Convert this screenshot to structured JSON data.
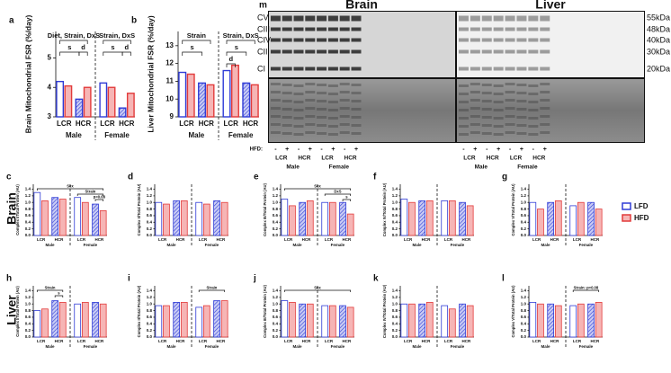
{
  "legend": [
    {
      "name": "LFD",
      "color": "#2f3bd6"
    },
    {
      "name": "HFD",
      "color": "#e23b3b"
    }
  ],
  "row_labels": [
    "Brain",
    "Liver"
  ],
  "blot": {
    "panel": "m",
    "tissues": [
      "Brain",
      "Liver"
    ],
    "bands": [
      "CV",
      "CIII",
      "CIV",
      "CII",
      "CI"
    ],
    "sizes": [
      "55kDa",
      "48kDa",
      "40kDa",
      "30kDa",
      "20kDa"
    ],
    "hfd_label": "HFD:",
    "hfd": [
      "-",
      "+",
      "-",
      "+",
      "-",
      "+",
      "-",
      "+",
      "-",
      "+",
      "-",
      "+",
      "-",
      "+",
      "-",
      "+"
    ],
    "strains": [
      "LCR",
      "HCR",
      "LCR",
      "HCR",
      "LCR",
      "HCR",
      "LCR",
      "HCR"
    ],
    "sexes": [
      "Male",
      "Female",
      "Male",
      "Female"
    ]
  },
  "chart_data": [
    {
      "type": "bar",
      "panel": "a",
      "ylabel": "Brain Mitochondrial FSR (%/day)",
      "categories": [
        "LCR",
        "HCR",
        "LCR",
        "HCR"
      ],
      "groups": [
        "Male",
        "Female"
      ],
      "series": [
        {
          "values": [
            4.2,
            3.6,
            4.15,
            3.3
          ]
        },
        {
          "values": [
            4.05,
            4.0,
            4.0,
            3.8
          ]
        }
      ],
      "ylim": [
        3,
        5.9
      ],
      "yticks": [
        3,
        4,
        5
      ],
      "annotations": [
        {
          "text": "Diet, Strain, DxS",
          "span": [
            0,
            3
          ]
        },
        {
          "text": "s",
          "span": [
            0,
            2
          ]
        },
        {
          "text": "d",
          "span": [
            2,
            3
          ]
        },
        {
          "text": "Strain, DxS",
          "span": [
            4,
            7
          ]
        },
        {
          "text": "s",
          "span": [
            4,
            6
          ]
        },
        {
          "text": "d",
          "span": [
            6,
            7
          ]
        }
      ]
    },
    {
      "type": "bar",
      "panel": "b",
      "ylabel": "Liver Mitochondrial FSR (%/day)",
      "categories": [
        "LCR",
        "HCR",
        "LCR",
        "HCR"
      ],
      "groups": [
        "Male",
        "Female"
      ],
      "series": [
        {
          "values": [
            11.5,
            10.9,
            11.6,
            10.9
          ]
        },
        {
          "values": [
            11.4,
            10.8,
            11.9,
            10.8
          ]
        }
      ],
      "ylim": [
        9,
        13.8
      ],
      "yticks": [
        9,
        10,
        11,
        12,
        13
      ],
      "annotations": [
        {
          "text": "Strain",
          "span": [
            0,
            3
          ]
        },
        {
          "text": "s",
          "span": [
            0,
            2
          ]
        },
        {
          "text": "Strain, DxS",
          "span": [
            4,
            7
          ]
        },
        {
          "text": "s",
          "span": [
            4,
            6
          ]
        },
        {
          "text": "d",
          "span": [
            4,
            5
          ]
        }
      ]
    },
    {
      "type": "bar",
      "panel": "c",
      "ylabel": "Complex I/Total Protein (AU)",
      "categories": [
        "LCR",
        "HCR",
        "LCR",
        "HCR"
      ],
      "groups": [
        "Male",
        "Female"
      ],
      "series": [
        {
          "values": [
            1.3,
            1.15,
            1.15,
            0.95
          ]
        },
        {
          "values": [
            1.05,
            1.1,
            1.0,
            0.75
          ]
        }
      ],
      "ylim": [
        0,
        1.55
      ],
      "yticks": [
        {
          "value": 0,
          "label": "0.0"
        },
        {
          "value": 0.2,
          "label": "0.2"
        },
        {
          "value": 0.4,
          "label": "0.4"
        },
        {
          "value": 0.6,
          "label": "0.6"
        },
        {
          "value": 0.8,
          "label": "0.8"
        },
        {
          "value": 1.0,
          "label": "1.0"
        },
        {
          "value": 1.2,
          "label": "1.2"
        },
        {
          "value": 1.4,
          "label": "1.4"
        }
      ],
      "annotations": [
        {
          "text": "Sex",
          "span": [
            0,
            7
          ]
        },
        {
          "text": "Strain",
          "span": [
            4,
            7
          ]
        },
        {
          "text": "p=0.08",
          "span": [
            6,
            7
          ]
        }
      ]
    },
    {
      "type": "bar",
      "panel": "d",
      "ylabel": "Complex II/Total Protein (AU)",
      "categories": [
        "LCR",
        "HCR",
        "LCR",
        "HCR"
      ],
      "groups": [
        "Male",
        "Female"
      ],
      "series": [
        {
          "values": [
            1.0,
            1.05,
            1.0,
            1.05
          ]
        },
        {
          "values": [
            0.95,
            1.05,
            0.95,
            1.0
          ]
        }
      ],
      "ylim": [
        0,
        1.55
      ],
      "yticks": [
        {
          "value": 0,
          "label": "0.0"
        },
        {
          "value": 0.2,
          "label": "0.2"
        },
        {
          "value": 0.4,
          "label": "0.4"
        },
        {
          "value": 0.6,
          "label": "0.6"
        },
        {
          "value": 0.8,
          "label": "0.8"
        },
        {
          "value": 1.0,
          "label": "1.0"
        },
        {
          "value": 1.2,
          "label": "1.2"
        },
        {
          "value": 1.4,
          "label": "1.4"
        }
      ],
      "annotations": []
    },
    {
      "type": "bar",
      "panel": "e",
      "ylabel": "Complex III/Total Protein (AU)",
      "categories": [
        "LCR",
        "HCR",
        "LCR",
        "HCR"
      ],
      "groups": [
        "Male",
        "Female"
      ],
      "series": [
        {
          "values": [
            1.1,
            1.0,
            1.0,
            1.0
          ]
        },
        {
          "values": [
            0.9,
            1.05,
            1.0,
            0.65
          ]
        }
      ],
      "ylim": [
        0,
        1.55
      ],
      "yticks": [
        {
          "value": 0,
          "label": "0.0"
        },
        {
          "value": 0.2,
          "label": "0.2"
        },
        {
          "value": 0.4,
          "label": "0.4"
        },
        {
          "value": 0.6,
          "label": "0.6"
        },
        {
          "value": 0.8,
          "label": "0.8"
        },
        {
          "value": 1.0,
          "label": "1.0"
        },
        {
          "value": 1.2,
          "label": "1.2"
        },
        {
          "value": 1.4,
          "label": "1.4"
        }
      ],
      "annotations": [
        {
          "text": "Sex",
          "span": [
            0,
            7
          ]
        },
        {
          "text": "DxS",
          "span": [
            4,
            7
          ]
        },
        {
          "text": "s",
          "span": [
            6,
            7
          ]
        }
      ]
    },
    {
      "type": "bar",
      "panel": "f",
      "ylabel": "Complex IV/Total Protein (AU)",
      "categories": [
        "LCR",
        "HCR",
        "LCR",
        "HCR"
      ],
      "groups": [
        "Male",
        "Female"
      ],
      "series": [
        {
          "values": [
            1.1,
            1.05,
            1.05,
            1.0
          ]
        },
        {
          "values": [
            1.0,
            1.05,
            1.05,
            0.9
          ]
        }
      ],
      "ylim": [
        0,
        1.55
      ],
      "yticks": [
        {
          "value": 0,
          "label": "0.0"
        },
        {
          "value": 0.2,
          "label": "0.2"
        },
        {
          "value": 0.4,
          "label": "0.4"
        },
        {
          "value": 0.6,
          "label": "0.6"
        },
        {
          "value": 0.8,
          "label": "0.8"
        },
        {
          "value": 1.0,
          "label": "1.0"
        },
        {
          "value": 1.2,
          "label": "1.2"
        },
        {
          "value": 1.4,
          "label": "1.4"
        }
      ],
      "annotations": []
    },
    {
      "type": "bar",
      "panel": "g",
      "ylabel": "Complex V/Total Protein (AU)",
      "categories": [
        "LCR",
        "HCR",
        "LCR",
        "HCR"
      ],
      "groups": [
        "Male",
        "Female"
      ],
      "series": [
        {
          "values": [
            1.0,
            1.0,
            0.9,
            1.0
          ]
        },
        {
          "values": [
            0.8,
            1.05,
            1.0,
            0.8
          ]
        }
      ],
      "ylim": [
        0,
        1.55
      ],
      "yticks": [
        {
          "value": 0,
          "label": "0.0"
        },
        {
          "value": 0.2,
          "label": "0.2"
        },
        {
          "value": 0.4,
          "label": "0.4"
        },
        {
          "value": 0.6,
          "label": "0.6"
        },
        {
          "value": 0.8,
          "label": "0.8"
        },
        {
          "value": 1.0,
          "label": "1.0"
        },
        {
          "value": 1.2,
          "label": "1.2"
        },
        {
          "value": 1.4,
          "label": "1.4"
        }
      ],
      "annotations": []
    },
    {
      "type": "bar",
      "panel": "h",
      "ylabel": "Complex I/Total Protein (AU)",
      "categories": [
        "LCR",
        "HCR",
        "LCR",
        "HCR"
      ],
      "groups": [
        "Male",
        "Female"
      ],
      "series": [
        {
          "values": [
            0.8,
            1.1,
            1.0,
            1.05
          ]
        },
        {
          "values": [
            0.85,
            1.05,
            1.05,
            1.0
          ]
        }
      ],
      "ylim": [
        0,
        1.55
      ],
      "yticks": [
        {
          "value": 0,
          "label": "0.0"
        },
        {
          "value": 0.2,
          "label": "0.2"
        },
        {
          "value": 0.4,
          "label": "0.4"
        },
        {
          "value": 0.6,
          "label": "0.6"
        },
        {
          "value": 0.8,
          "label": "0.8"
        },
        {
          "value": 1.0,
          "label": "1.0"
        },
        {
          "value": 1.2,
          "label": "1.2"
        },
        {
          "value": 1.4,
          "label": "1.4"
        }
      ],
      "annotations": [
        {
          "text": "Strain",
          "span": [
            0,
            3
          ]
        },
        {
          "text": "s",
          "span": [
            2,
            3
          ]
        }
      ]
    },
    {
      "type": "bar",
      "panel": "i",
      "ylabel": "Complex II/Total Protein (AU)",
      "categories": [
        "LCR",
        "HCR",
        "LCR",
        "HCR"
      ],
      "groups": [
        "Male",
        "Female"
      ],
      "series": [
        {
          "values": [
            0.95,
            1.05,
            0.9,
            1.1
          ]
        },
        {
          "values": [
            0.95,
            1.05,
            0.95,
            1.1
          ]
        }
      ],
      "ylim": [
        0,
        1.55
      ],
      "yticks": [
        {
          "value": 0,
          "label": "0.0"
        },
        {
          "value": 0.2,
          "label": "0.2"
        },
        {
          "value": 0.4,
          "label": "0.4"
        },
        {
          "value": 0.6,
          "label": "0.6"
        },
        {
          "value": 0.8,
          "label": "0.8"
        },
        {
          "value": 1.0,
          "label": "1.0"
        },
        {
          "value": 1.2,
          "label": "1.2"
        },
        {
          "value": 1.4,
          "label": "1.4"
        }
      ],
      "annotations": [
        {
          "text": "Strain",
          "span": [
            4,
            7
          ]
        }
      ]
    },
    {
      "type": "bar",
      "panel": "j",
      "ylabel": "Complex III/Total Protein (AU)",
      "categories": [
        "LCR",
        "HCR",
        "LCR",
        "HCR"
      ],
      "groups": [
        "Male",
        "Female"
      ],
      "series": [
        {
          "values": [
            1.1,
            1.0,
            0.95,
            0.95
          ]
        },
        {
          "values": [
            1.05,
            1.0,
            0.95,
            0.9
          ]
        }
      ],
      "ylim": [
        0,
        1.55
      ],
      "yticks": [
        {
          "value": 0,
          "label": "0.0"
        },
        {
          "value": 0.2,
          "label": "0.2"
        },
        {
          "value": 0.4,
          "label": "0.4"
        },
        {
          "value": 0.6,
          "label": "0.6"
        },
        {
          "value": 0.8,
          "label": "0.8"
        },
        {
          "value": 1.0,
          "label": "1.0"
        },
        {
          "value": 1.2,
          "label": "1.2"
        },
        {
          "value": 1.4,
          "label": "1.4"
        }
      ],
      "annotations": [
        {
          "text": "Sex",
          "span": [
            0,
            7
          ]
        }
      ]
    },
    {
      "type": "bar",
      "panel": "k",
      "ylabel": "Complex IV/Total Protein (AU)",
      "categories": [
        "LCR",
        "HCR",
        "LCR",
        "HCR"
      ],
      "groups": [
        "Male",
        "Female"
      ],
      "series": [
        {
          "values": [
            1.0,
            1.0,
            0.95,
            1.0
          ]
        },
        {
          "values": [
            1.0,
            1.05,
            0.85,
            0.95
          ]
        }
      ],
      "ylim": [
        0,
        1.55
      ],
      "yticks": [
        {
          "value": 0,
          "label": "0.0"
        },
        {
          "value": 0.2,
          "label": "0.2"
        },
        {
          "value": 0.4,
          "label": "0.4"
        },
        {
          "value": 0.6,
          "label": "0.6"
        },
        {
          "value": 0.8,
          "label": "0.8"
        },
        {
          "value": 1.0,
          "label": "1.0"
        },
        {
          "value": 1.2,
          "label": "1.2"
        },
        {
          "value": 1.4,
          "label": "1.4"
        }
      ],
      "annotations": []
    },
    {
      "type": "bar",
      "panel": "l",
      "ylabel": "Complex V/Total Protein (AU)",
      "categories": [
        "LCR",
        "HCR",
        "LCR",
        "HCR"
      ],
      "groups": [
        "Male",
        "Female"
      ],
      "series": [
        {
          "values": [
            1.05,
            1.0,
            0.95,
            1.0
          ]
        },
        {
          "values": [
            1.0,
            0.95,
            1.0,
            1.05
          ]
        }
      ],
      "ylim": [
        0,
        1.55
      ],
      "yticks": [
        {
          "value": 0,
          "label": "0.0"
        },
        {
          "value": 0.2,
          "label": "0.2"
        },
        {
          "value": 0.4,
          "label": "0.4"
        },
        {
          "value": 0.6,
          "label": "0.6"
        },
        {
          "value": 0.8,
          "label": "0.8"
        },
        {
          "value": 1.0,
          "label": "1.0"
        },
        {
          "value": 1.2,
          "label": "1.2"
        },
        {
          "value": 1.4,
          "label": "1.4"
        }
      ],
      "annotations": [
        {
          "text": "Strain: p=0.08",
          "span": [
            4,
            7
          ]
        }
      ]
    }
  ]
}
